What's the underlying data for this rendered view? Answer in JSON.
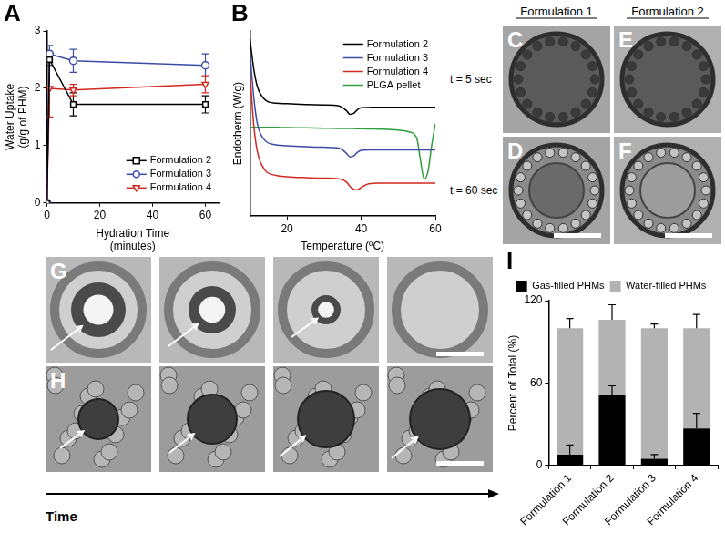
{
  "chart_data": [
    {
      "title": "A",
      "type": "line",
      "x_label": [
        "Hydration Time",
        "(minutes)"
      ],
      "y_label": [
        "Water Uptake",
        "(g/g of PHM)"
      ],
      "x": [
        0,
        1,
        10,
        60
      ],
      "xlim": [
        0,
        65
      ],
      "xticks": [
        0,
        20,
        40,
        60
      ],
      "ylim": [
        0,
        3
      ],
      "yticks": [
        0,
        1,
        2,
        3
      ],
      "grid": false,
      "legend": "lower right",
      "series": [
        {
          "name": "Formulation 2",
          "color": "#000000",
          "marker": "square",
          "values": [
            0,
            2.5,
            1.72,
            1.72
          ],
          "errors": [
            0,
            0.1,
            0.2,
            0.15
          ]
        },
        {
          "name": "Formulation 3",
          "color": "#3b4ba8",
          "marker": "circle",
          "values": [
            0,
            2.6,
            2.48,
            2.4
          ],
          "errors": [
            0,
            0.15,
            0.2,
            0.2
          ]
        },
        {
          "name": "Formulation 4",
          "color": "#d1281f",
          "marker": "triangle-down",
          "values": [
            0,
            2.0,
            1.97,
            2.07
          ],
          "errors": [
            0,
            0.5,
            0.1,
            0.15
          ]
        }
      ]
    },
    {
      "title": "B",
      "type": "line",
      "x_label": "Temperature (ºC)",
      "y_label": "Endotherm (W/g)",
      "x": [
        10,
        11,
        12,
        14,
        17,
        20,
        25,
        30,
        34,
        36,
        37,
        38,
        39,
        40,
        42,
        45,
        50,
        53,
        55,
        56,
        57,
        58,
        59,
        60
      ],
      "xlim": [
        10,
        60
      ],
      "xticks": [
        20,
        40,
        60
      ],
      "ylim": [
        0,
        100
      ],
      "yticks": [],
      "tick_labels": "x",
      "grid": false,
      "legend": "upper right",
      "series": [
        {
          "name": "Formulation 2",
          "color": "#000000",
          "values": [
            96,
            80,
            70,
            63,
            61,
            60.7,
            60.3,
            60,
            59.5,
            57,
            55,
            55.5,
            57.5,
            58.5,
            58.7,
            58.8,
            58.8,
            58.8,
            58.8,
            58.8,
            58.8,
            58.8,
            58.8,
            58.8
          ]
        },
        {
          "name": "Formulation 3",
          "color": "#3b4ba8",
          "values": [
            89,
            65,
            50,
            41,
            38.5,
            38,
            37.5,
            37.2,
            36.8,
            34,
            32,
            32.5,
            34.5,
            35.5,
            35.8,
            35.8,
            35.8,
            35.8,
            35.8,
            35.8,
            35.8,
            35.8,
            35.8,
            35.8
          ]
        },
        {
          "name": "Formulation 4",
          "color": "#d1281f",
          "values": [
            78,
            50,
            35,
            25,
            22,
            21.3,
            20.8,
            20.5,
            20.2,
            18.5,
            16,
            14.5,
            14.2,
            15.5,
            17.5,
            17.8,
            17.8,
            17.8,
            17.8,
            17.8,
            17.8,
            17.8,
            17.8,
            17.8
          ]
        },
        {
          "name": "PLGA pellet",
          "color": "#2e9e3e",
          "values": [
            48,
            48,
            48,
            47.9,
            47.9,
            47.8,
            47.7,
            47.5,
            47.4,
            47.3,
            47.3,
            47.3,
            47.2,
            47.2,
            47.1,
            47,
            46.5,
            45.5,
            42,
            30,
            20,
            24,
            38,
            50
          ]
        }
      ]
    },
    {
      "title": "I",
      "type": "bar",
      "stacked": true,
      "categories": [
        "Formulation 1",
        "Formulation 2",
        "Formulation 3",
        "Formulation 4"
      ],
      "y_label": "Percent of Total (%)",
      "ylim": [
        0,
        120
      ],
      "yticks": [
        0,
        60,
        120
      ],
      "grid": false,
      "legend": "top",
      "series": [
        {
          "name": "Gas-filled PHMs",
          "color": "#000000",
          "values": [
            8,
            51,
            5,
            27
          ],
          "errors": [
            7,
            7,
            3,
            11
          ]
        },
        {
          "name": "Water-filled PHMs",
          "color": "#b3b3b3",
          "values": [
            92,
            55,
            95,
            73
          ],
          "errors": [
            7,
            11,
            3,
            10
          ]
        }
      ]
    }
  ],
  "micrographs": {
    "grid": {
      "columns": [
        {
          "header": "Formulation 1",
          "panels": [
            "C",
            "D"
          ]
        },
        {
          "header": "Formulation 2",
          "panels": [
            "E",
            "F"
          ]
        }
      ],
      "rows": [
        "t = 5 sec",
        "t = 60 sec"
      ]
    },
    "sequence_panels": [
      "G",
      "H"
    ],
    "time_axis": "Time"
  }
}
